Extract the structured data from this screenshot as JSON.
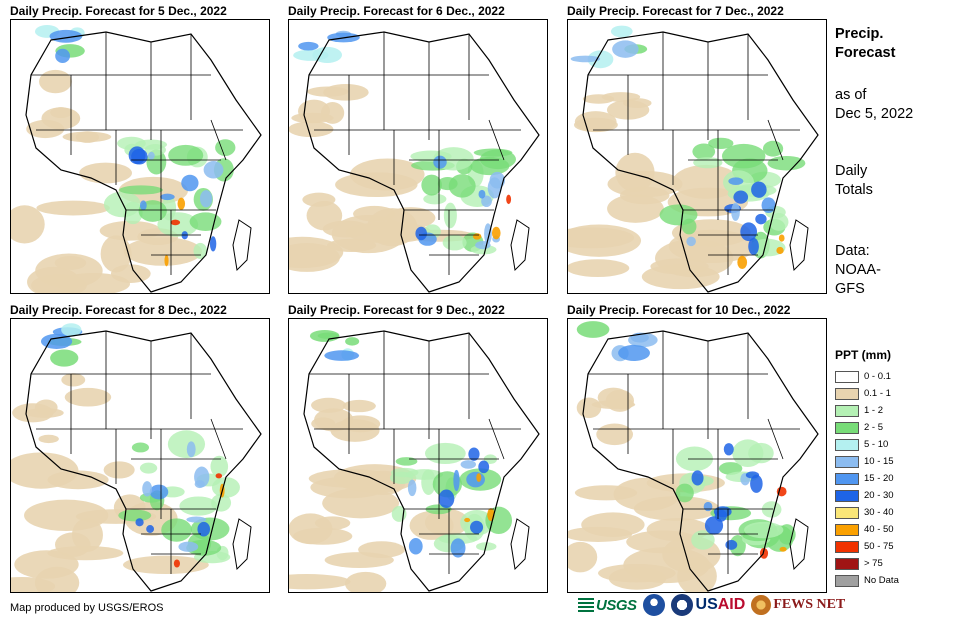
{
  "panels": [
    {
      "title": "Daily Precip. Forecast for 5 Dec., 2022",
      "variant": 0
    },
    {
      "title": "Daily Precip. Forecast for 6 Dec., 2022",
      "variant": 1
    },
    {
      "title": "Daily Precip. Forecast for 7 Dec., 2022",
      "variant": 2
    },
    {
      "title": "Daily Precip. Forecast for 8 Dec., 2022",
      "variant": 3
    },
    {
      "title": "Daily Precip. Forecast for 9 Dec., 2022",
      "variant": 4
    },
    {
      "title": "Daily Precip. Forecast for 10 Dec., 2022",
      "variant": 5
    }
  ],
  "side": {
    "title_line1": "Precip.",
    "title_line2": "Forecast",
    "asof_line1": "as of",
    "asof_line2": "Dec 5, 2022",
    "totals_line1": "Daily",
    "totals_line2": "Totals",
    "data_line1": "Data:",
    "data_line2": "NOAA-",
    "data_line3": "GFS"
  },
  "legend": {
    "title": "PPT (mm)",
    "items": [
      {
        "label": "0 - 0.1",
        "color": "#ffffff"
      },
      {
        "label": "0.1 - 1",
        "color": "#e8d4b0"
      },
      {
        "label": "1 - 2",
        "color": "#b4f0b4"
      },
      {
        "label": "2 - 5",
        "color": "#78dc78"
      },
      {
        "label": "5 - 10",
        "color": "#b4f0f0"
      },
      {
        "label": "10 - 15",
        "color": "#8cbcf0"
      },
      {
        "label": "15 - 20",
        "color": "#5096f0"
      },
      {
        "label": "20 - 30",
        "color": "#1e64e6"
      },
      {
        "label": "30 - 40",
        "color": "#fae678"
      },
      {
        "label": "40 - 50",
        "color": "#faa000"
      },
      {
        "label": "50 - 75",
        "color": "#f03200"
      },
      {
        "label": "> 75",
        "color": "#a01414"
      },
      {
        "label": "No Data",
        "color": "#a0a0a0"
      }
    ]
  },
  "credit": "Map produced by USGS/EROS",
  "logos": {
    "usgs": "USGS",
    "usaid_a": "US",
    "usaid_b": "AID",
    "fews": "FEWS NET"
  }
}
